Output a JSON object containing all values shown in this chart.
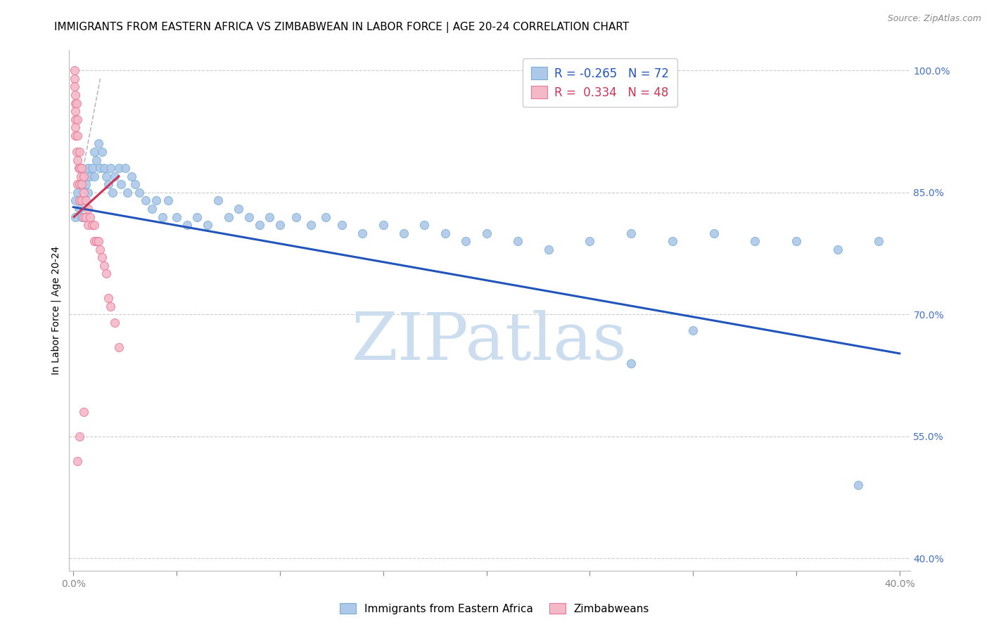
{
  "title": "IMMIGRANTS FROM EASTERN AFRICA VS ZIMBABWEAN IN LABOR FORCE | AGE 20-24 CORRELATION CHART",
  "source": "Source: ZipAtlas.com",
  "ylabel": "In Labor Force | Age 20-24",
  "xlim": [
    -0.002,
    0.405
  ],
  "ylim": [
    0.385,
    1.025
  ],
  "xticks": [
    0.0,
    0.05,
    0.1,
    0.15,
    0.2,
    0.25,
    0.3,
    0.35,
    0.4
  ],
  "right_yticks": [
    0.4,
    0.55,
    0.7,
    0.85,
    1.0
  ],
  "right_yticklabels": [
    "40.0%",
    "55.0%",
    "70.0%",
    "85.0%",
    "100.0%"
  ],
  "blue_color": "#adc8e8",
  "blue_edge": "#7aafd4",
  "pink_color": "#f5b8c8",
  "pink_edge": "#e87898",
  "trend_blue": "#2255bb",
  "trend_pink": "#cc3355",
  "trend_pink_dashed": "#d8a0b0",
  "watermark": "ZIPatlas",
  "watermark_color": "#ccddf0",
  "legend_R_blue": "-0.265",
  "legend_N_blue": "72",
  "legend_R_pink": "0.334",
  "legend_N_pink": "48",
  "legend_label_blue": "Immigrants from Eastern Africa",
  "legend_label_pink": "Zimbabweans",
  "blue_x": [
    0.001,
    0.001,
    0.002,
    0.003,
    0.004,
    0.004,
    0.005,
    0.005,
    0.006,
    0.007,
    0.007,
    0.008,
    0.009,
    0.01,
    0.01,
    0.011,
    0.012,
    0.013,
    0.014,
    0.015,
    0.016,
    0.017,
    0.018,
    0.019,
    0.02,
    0.022,
    0.023,
    0.025,
    0.026,
    0.028,
    0.03,
    0.032,
    0.035,
    0.038,
    0.04,
    0.043,
    0.046,
    0.05,
    0.055,
    0.06,
    0.065,
    0.07,
    0.075,
    0.08,
    0.085,
    0.09,
    0.095,
    0.1,
    0.108,
    0.115,
    0.122,
    0.13,
    0.14,
    0.15,
    0.16,
    0.17,
    0.18,
    0.19,
    0.2,
    0.215,
    0.23,
    0.25,
    0.27,
    0.29,
    0.31,
    0.33,
    0.35,
    0.37,
    0.39,
    0.27,
    0.3,
    0.38
  ],
  "blue_y": [
    0.84,
    0.82,
    0.85,
    0.83,
    0.86,
    0.82,
    0.87,
    0.84,
    0.86,
    0.88,
    0.85,
    0.87,
    0.88,
    0.9,
    0.87,
    0.89,
    0.91,
    0.88,
    0.9,
    0.88,
    0.87,
    0.86,
    0.88,
    0.85,
    0.87,
    0.88,
    0.86,
    0.88,
    0.85,
    0.87,
    0.86,
    0.85,
    0.84,
    0.83,
    0.84,
    0.82,
    0.84,
    0.82,
    0.81,
    0.82,
    0.81,
    0.84,
    0.82,
    0.83,
    0.82,
    0.81,
    0.82,
    0.81,
    0.82,
    0.81,
    0.82,
    0.81,
    0.8,
    0.81,
    0.8,
    0.81,
    0.8,
    0.79,
    0.8,
    0.79,
    0.78,
    0.79,
    0.8,
    0.79,
    0.8,
    0.79,
    0.79,
    0.78,
    0.79,
    0.64,
    0.68,
    0.49
  ],
  "pink_x": [
    0.0005,
    0.0005,
    0.0005,
    0.001,
    0.001,
    0.001,
    0.001,
    0.001,
    0.001,
    0.0015,
    0.0015,
    0.002,
    0.002,
    0.002,
    0.002,
    0.0025,
    0.003,
    0.003,
    0.003,
    0.003,
    0.0035,
    0.004,
    0.004,
    0.004,
    0.005,
    0.005,
    0.005,
    0.006,
    0.006,
    0.007,
    0.007,
    0.008,
    0.009,
    0.01,
    0.01,
    0.011,
    0.012,
    0.013,
    0.014,
    0.015,
    0.016,
    0.017,
    0.018,
    0.02,
    0.022,
    0.005,
    0.003,
    0.002
  ],
  "pink_y": [
    1.0,
    0.99,
    0.98,
    0.97,
    0.96,
    0.95,
    0.94,
    0.93,
    0.92,
    0.96,
    0.9,
    0.94,
    0.92,
    0.89,
    0.86,
    0.88,
    0.9,
    0.88,
    0.86,
    0.84,
    0.87,
    0.88,
    0.86,
    0.84,
    0.87,
    0.85,
    0.82,
    0.84,
    0.82,
    0.83,
    0.81,
    0.82,
    0.81,
    0.81,
    0.79,
    0.79,
    0.79,
    0.78,
    0.77,
    0.76,
    0.75,
    0.72,
    0.71,
    0.69,
    0.66,
    0.58,
    0.55,
    0.52
  ],
  "title_fontsize": 11,
  "axis_label_fontsize": 10,
  "tick_fontsize": 10,
  "marker_size": 75,
  "grid_color": "#cccccc",
  "axis_color": "#4472c4"
}
